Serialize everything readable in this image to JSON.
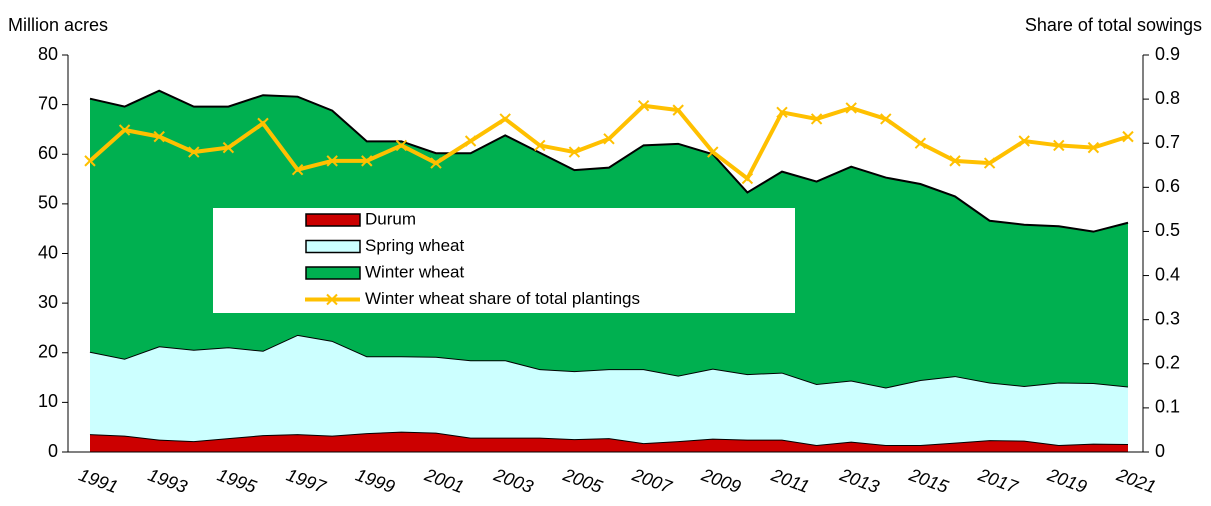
{
  "chart_data": {
    "type": "area",
    "stacked": true,
    "y_label": "Million acres",
    "y2_label": "Share of total sowings",
    "categories": [
      "1991",
      null,
      "1993",
      null,
      "1995",
      null,
      "1997",
      null,
      "1999",
      null,
      "2001",
      null,
      "2003",
      null,
      "2005",
      null,
      "2007",
      null,
      "2009",
      null,
      "2011",
      null,
      "2013",
      null,
      "2015",
      null,
      "2017",
      null,
      "2019",
      null,
      "2021"
    ],
    "series": [
      {
        "name": "Durum",
        "color": "#cc0000",
        "values": [
          3.6,
          3.3,
          2.5,
          2.2,
          2.8,
          3.4,
          3.6,
          3.3,
          3.8,
          4.1,
          3.9,
          2.9,
          2.9,
          2.9,
          2.6,
          2.8,
          1.8,
          2.2,
          2.7,
          2.5,
          2.5,
          1.4,
          2.1,
          1.4,
          1.4,
          1.9,
          2.4,
          2.3,
          1.4,
          1.7,
          1.6
        ]
      },
      {
        "name": "Spring wheat",
        "color": "#ccffff",
        "values": [
          16.6,
          15.5,
          18.8,
          18.4,
          18.3,
          17.0,
          20.0,
          19.1,
          15.5,
          15.2,
          15.3,
          15.6,
          15.6,
          13.8,
          13.7,
          13.9,
          14.9,
          13.2,
          14.1,
          13.2,
          13.5,
          12.3,
          12.3,
          11.6,
          13.1,
          13.4,
          11.6,
          11.0,
          12.6,
          12.2,
          11.6
        ]
      },
      {
        "name": "Winter wheat",
        "color": "#00b050",
        "values": [
          51.0,
          50.8,
          51.5,
          49.0,
          48.5,
          51.5,
          48.0,
          46.4,
          43.3,
          43.3,
          41.0,
          41.7,
          45.3,
          43.6,
          40.5,
          40.6,
          45.1,
          46.7,
          43.2,
          36.6,
          40.5,
          40.8,
          43.1,
          42.3,
          39.5,
          36.2,
          32.6,
          32.5,
          31.5,
          30.5,
          33.0
        ]
      },
      {
        "name": "Winter wheat share of total plantings",
        "color": "#ffc000",
        "type": "line",
        "axis": "y2",
        "values": [
          0.66,
          0.73,
          0.715,
          0.68,
          0.69,
          0.745,
          0.64,
          0.66,
          0.66,
          0.695,
          0.655,
          0.705,
          0.755,
          0.695,
          0.68,
          0.71,
          0.785,
          0.775,
          0.68,
          0.62,
          0.77,
          0.755,
          0.78,
          0.755,
          0.7,
          0.66,
          0.655,
          0.705,
          0.695,
          0.69,
          0.715
        ]
      }
    ],
    "ylim": [
      0,
      80
    ],
    "yticks": [
      0,
      10,
      20,
      30,
      40,
      50,
      60,
      70,
      80
    ],
    "y2lim": [
      0,
      0.9
    ],
    "y2ticks": [
      0,
      0.1,
      0.2,
      0.3,
      0.4,
      0.5,
      0.6,
      0.7,
      0.8,
      0.9
    ]
  }
}
